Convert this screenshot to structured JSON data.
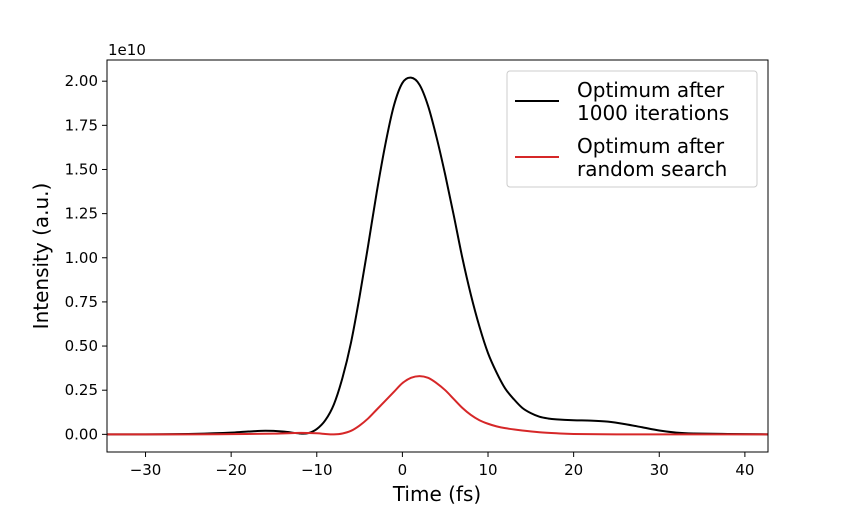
{
  "chart_data": {
    "type": "line",
    "xlabel": "Time (fs)",
    "ylabel": "Intensity (a.u.)",
    "y_offset_text": "1e10",
    "xlim": [
      -34.5,
      42.7
    ],
    "ylim": [
      -0.1,
      2.12
    ],
    "y_scale_factor": 10000000000.0,
    "x_ticks": [
      -30,
      -20,
      -10,
      0,
      10,
      20,
      30,
      40
    ],
    "x_tick_labels": [
      "−30",
      "−20",
      "−10",
      "0",
      "10",
      "20",
      "30",
      "40"
    ],
    "y_ticks": [
      0.0,
      0.25,
      0.5,
      0.75,
      1.0,
      1.25,
      1.5,
      1.75,
      2.0
    ],
    "y_tick_labels": [
      "0.00",
      "0.25",
      "0.50",
      "0.75",
      "1.00",
      "1.25",
      "1.50",
      "1.75",
      "2.00"
    ],
    "grid": false,
    "legend_position": "top-right",
    "series": [
      {
        "name": "Optimum after\n1000 iterations",
        "color": "#000000",
        "x": [
          -34.5,
          -30,
          -25,
          -22,
          -20,
          -18,
          -16,
          -14,
          -12,
          -11,
          -10,
          -9,
          -8,
          -7,
          -6,
          -5,
          -4,
          -3,
          -2,
          -1,
          0,
          1,
          2,
          3,
          4,
          5,
          6,
          7,
          8,
          9,
          10,
          11,
          12,
          13,
          14,
          15,
          16,
          17,
          18,
          20,
          22,
          24,
          26,
          28,
          30,
          32,
          34,
          38,
          42.7
        ],
        "y": [
          0.0,
          0.0,
          0.002,
          0.006,
          0.01,
          0.016,
          0.02,
          0.016,
          0.005,
          0.007,
          0.03,
          0.08,
          0.17,
          0.32,
          0.52,
          0.78,
          1.07,
          1.37,
          1.64,
          1.86,
          1.99,
          2.02,
          1.98,
          1.86,
          1.68,
          1.47,
          1.24,
          1.0,
          0.79,
          0.61,
          0.46,
          0.35,
          0.26,
          0.2,
          0.15,
          0.12,
          0.1,
          0.09,
          0.085,
          0.08,
          0.078,
          0.072,
          0.058,
          0.04,
          0.022,
          0.01,
          0.005,
          0.002,
          0.0
        ]
      },
      {
        "name": "Optimum after\nrandom search",
        "color": "#d62728",
        "x": [
          -34.5,
          -25,
          -20,
          -15,
          -12,
          -10,
          -9,
          -8,
          -7,
          -6,
          -5,
          -4,
          -3,
          -2,
          -1,
          0,
          1,
          2,
          3,
          4,
          5,
          6,
          7,
          8,
          9,
          10,
          11,
          12,
          14,
          16,
          18,
          20,
          25,
          30,
          42.7
        ],
        "y": [
          0.0,
          0.0,
          0.001,
          0.004,
          0.008,
          0.006,
          0.002,
          0.0,
          0.005,
          0.02,
          0.05,
          0.09,
          0.14,
          0.19,
          0.24,
          0.29,
          0.32,
          0.33,
          0.32,
          0.29,
          0.25,
          0.2,
          0.15,
          0.11,
          0.08,
          0.06,
          0.045,
          0.035,
          0.022,
          0.012,
          0.006,
          0.002,
          0.0,
          0.0,
          0.0
        ]
      }
    ]
  }
}
